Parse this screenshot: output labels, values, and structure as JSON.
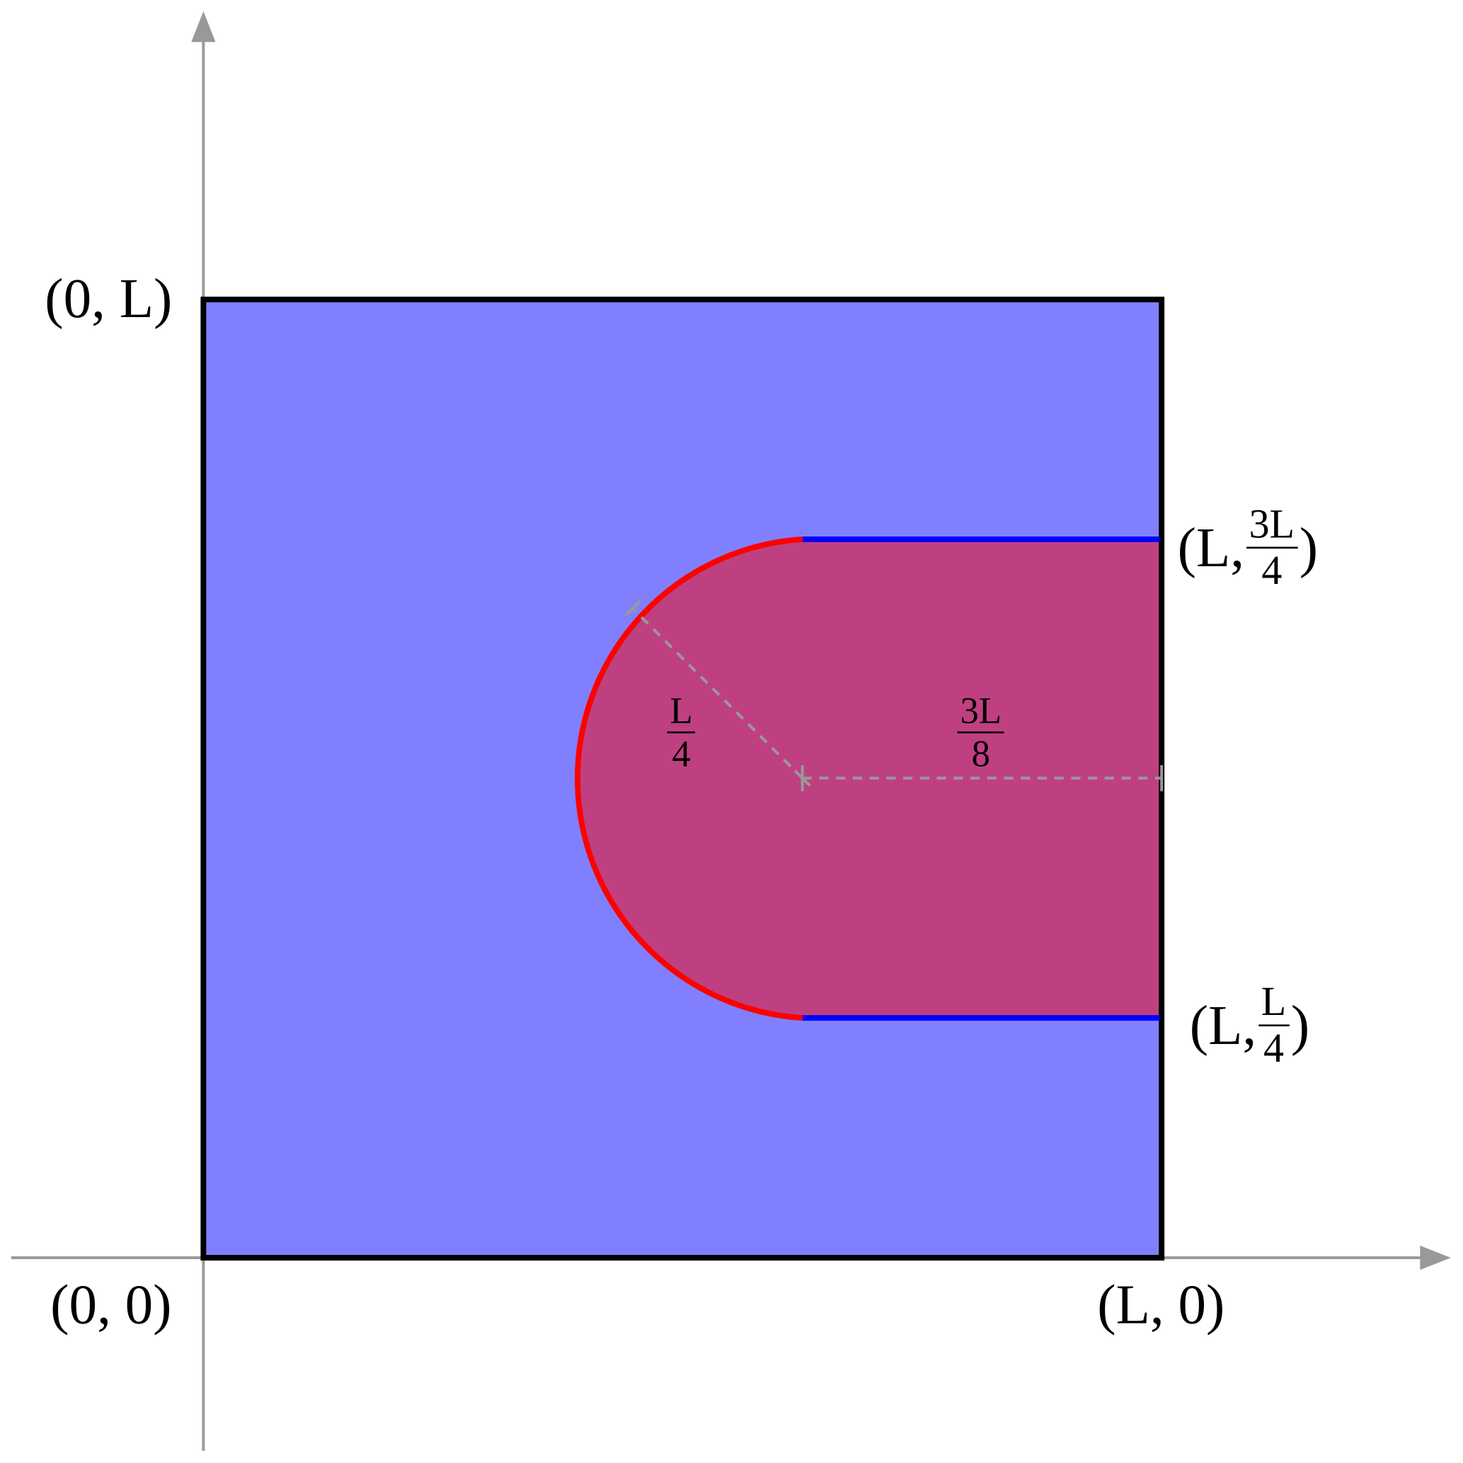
{
  "colors": {
    "domain_fill": "#8080ff",
    "region_fill": "#bf4080",
    "arc": "#ff0000",
    "edges": "#0000ff",
    "axes": "#999999",
    "border": "#000000"
  },
  "labels": {
    "origin": "(0, 0)",
    "top_left": "(0, L)",
    "bottom_right": "(L, 0)",
    "upper_right": {
      "prefix": "(L, ",
      "num": "3L",
      "den": "4",
      "suffix": ")"
    },
    "lower_right": {
      "prefix": "(L, ",
      "num": "L",
      "den": "4",
      "suffix": ")"
    },
    "radius": {
      "num": "L",
      "den": "4"
    },
    "distance": {
      "num": "3L",
      "den": "8"
    }
  }
}
